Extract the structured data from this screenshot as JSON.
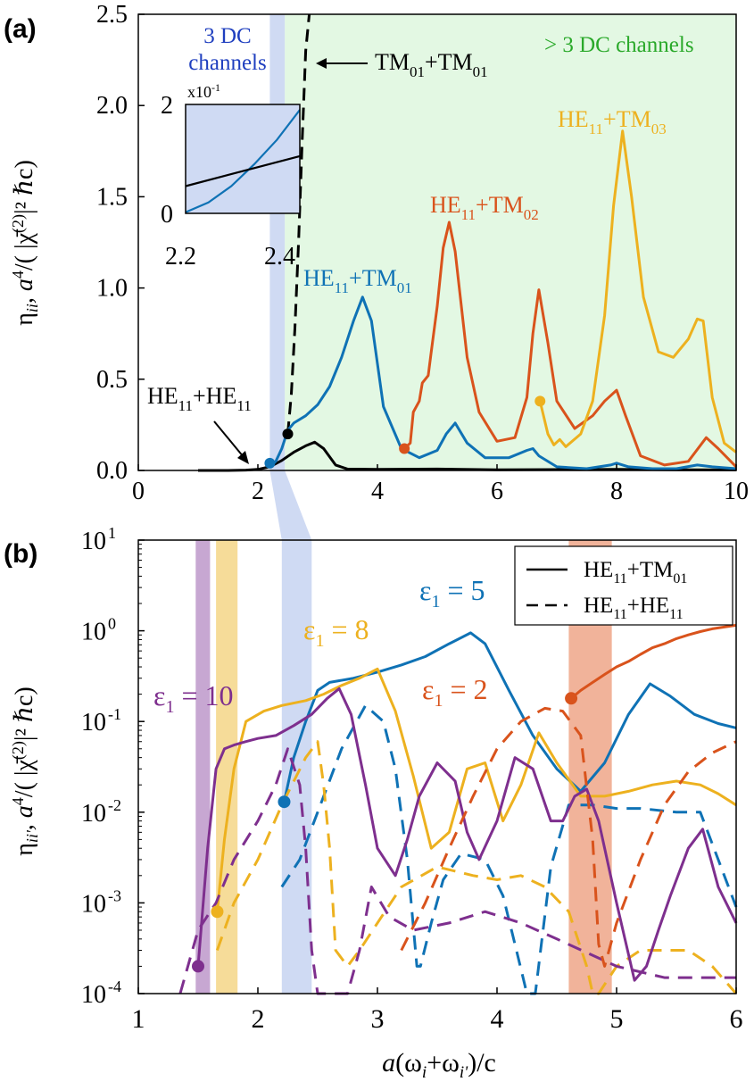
{
  "colors": {
    "blue": "#0f72b5",
    "orange": "#d9531c",
    "yellow": "#edb11f",
    "purple": "#7e2f8e",
    "black": "#000000",
    "green_region": "#e3f8e3",
    "blue_region": "#cfdaf3",
    "green_text": "#2aa92a",
    "blue_text": "#1f3fbf",
    "purple_band": "#c7a7d2",
    "yellow_band": "#f6dc99",
    "orange_band": "#f1b39a"
  },
  "chart_data": [
    {
      "panel": "(a)",
      "type": "line",
      "xlim": [
        0,
        10
      ],
      "ylim": [
        0,
        2.5
      ],
      "xticks": [
        "0",
        "2",
        "4",
        "6",
        "8",
        "10"
      ],
      "yticks": [
        "0.0",
        "0.5",
        "1.0",
        "1.5",
        "2.0",
        "2.5"
      ],
      "ylabel": {
        "prefix": "η",
        "sub1": "ii",
        "mid": ", a",
        "sup1": "4",
        "rest": "/( |χ̄",
        "sup2": "(2)",
        "end": "|² ℏc)"
      },
      "regions": [
        {
          "name": "3 DC channels",
          "x": [
            2.2,
            2.45
          ],
          "label_lines": [
            "3 DC",
            "channels"
          ]
        },
        {
          "name": "> 3 DC channels",
          "x": [
            2.45,
            10
          ],
          "label": "> 3 DC channels"
        }
      ],
      "series": [
        {
          "name": "HE11+HE11",
          "label": {
            "a": "HE",
            "b": "11",
            "c": "+HE",
            "d": "11"
          },
          "color": "black",
          "style": "solid",
          "x": [
            1.0,
            1.5,
            1.8,
            2.0,
            2.2,
            2.4,
            2.6,
            2.8,
            2.95,
            3.1,
            3.3,
            3.5,
            4.0,
            5.0,
            6.0,
            7.0,
            8.0,
            9.0,
            10.0
          ],
          "y": [
            0.0,
            0.0,
            0.002,
            0.006,
            0.02,
            0.055,
            0.1,
            0.135,
            0.155,
            0.12,
            0.03,
            0.008,
            0.006,
            0.008,
            0.004,
            0.005,
            0.006,
            0.004,
            0.003
          ]
        },
        {
          "name": "TM01+TM01",
          "label": {
            "a": "TM",
            "b": "01",
            "c": "+TM",
            "d": "01"
          },
          "color": "black",
          "style": "dashed",
          "x": [
            2.5,
            2.56,
            2.62,
            2.68,
            2.74,
            2.8,
            2.86
          ],
          "y": [
            0.2,
            0.42,
            0.78,
            1.25,
            1.8,
            2.3,
            2.5
          ]
        },
        {
          "name": "HE11+TM01",
          "label": {
            "a": "HE",
            "b": "11",
            "c": "+TM",
            "d": "01"
          },
          "color": "blue",
          "style": "solid",
          "x": [
            2.2,
            2.3,
            2.4,
            2.5,
            2.6,
            2.8,
            3.0,
            3.2,
            3.4,
            3.6,
            3.75,
            3.9,
            4.1,
            4.4,
            4.7,
            5.0,
            5.15,
            5.3,
            5.5,
            5.8,
            6.2,
            6.5,
            6.6,
            6.7,
            7.0,
            7.5,
            7.9,
            8.0,
            8.2,
            8.6,
            9.0,
            9.35,
            9.6,
            10.0
          ],
          "y": [
            0.02,
            0.05,
            0.12,
            0.22,
            0.26,
            0.3,
            0.36,
            0.46,
            0.62,
            0.82,
            0.95,
            0.82,
            0.35,
            0.12,
            0.07,
            0.11,
            0.2,
            0.26,
            0.15,
            0.07,
            0.07,
            0.11,
            0.12,
            0.08,
            0.02,
            0.01,
            0.03,
            0.04,
            0.02,
            0.01,
            0.01,
            0.03,
            0.02,
            0.01
          ]
        },
        {
          "name": "HE11+TM02",
          "label": {
            "a": "HE",
            "b": "11",
            "c": "+TM",
            "d": "02"
          },
          "color": "orange",
          "style": "solid",
          "x": [
            4.45,
            4.55,
            4.6,
            4.7,
            4.75,
            4.85,
            4.9,
            5.0,
            5.1,
            5.2,
            5.3,
            5.5,
            5.7,
            6.0,
            6.3,
            6.5,
            6.6,
            6.7,
            6.85,
            7.0,
            7.3,
            7.6,
            7.8,
            8.0,
            8.15,
            8.4,
            8.8,
            9.2,
            9.5,
            9.7,
            10.0
          ],
          "y": [
            0.12,
            0.15,
            0.32,
            0.38,
            0.48,
            0.52,
            0.65,
            0.9,
            1.22,
            1.36,
            1.2,
            0.62,
            0.32,
            0.16,
            0.18,
            0.4,
            0.75,
            0.99,
            0.7,
            0.38,
            0.23,
            0.3,
            0.38,
            0.44,
            0.3,
            0.08,
            0.03,
            0.05,
            0.18,
            0.12,
            0.02
          ]
        },
        {
          "name": "HE11+TM03",
          "label": {
            "a": "HE",
            "b": "11",
            "c": "+TM",
            "d": "03"
          },
          "color": "yellow",
          "style": "solid",
          "x": [
            6.72,
            6.85,
            6.95,
            7.05,
            7.15,
            7.4,
            7.6,
            7.8,
            7.95,
            8.1,
            8.25,
            8.45,
            8.7,
            8.95,
            9.2,
            9.35,
            9.45,
            9.6,
            9.8,
            10.0
          ],
          "y": [
            0.38,
            0.2,
            0.14,
            0.17,
            0.13,
            0.2,
            0.38,
            0.85,
            1.45,
            1.86,
            1.5,
            0.95,
            0.65,
            0.62,
            0.72,
            0.83,
            0.82,
            0.4,
            0.15,
            0.1
          ]
        }
      ],
      "markers": [
        {
          "x": 2.2,
          "y": 0.04,
          "color": "blue"
        },
        {
          "x": 2.5,
          "y": 0.2,
          "color": "black"
        },
        {
          "x": 4.45,
          "y": 0.12,
          "color": "orange"
        },
        {
          "x": 6.72,
          "y": 0.38,
          "color": "yellow"
        }
      ],
      "inset": {
        "xlim": [
          2.2,
          2.45
        ],
        "ylim": [
          0,
          2
        ],
        "exponent": "x10",
        "exponent_sup": "-1",
        "xticks": [
          "2.2",
          "2.4"
        ],
        "yticks": [
          "0",
          "2"
        ],
        "series": [
          {
            "color": "blue",
            "x": [
              2.2,
              2.25,
              2.3,
              2.35,
              2.4,
              2.45
            ],
            "y": [
              0.02,
              0.2,
              0.5,
              0.9,
              1.35,
              1.9
            ]
          },
          {
            "color": "black",
            "x": [
              2.2,
              2.45
            ],
            "y": [
              0.5,
              1.05
            ]
          }
        ]
      }
    },
    {
      "panel": "(b)",
      "type": "line",
      "yscale": "log",
      "xlim": [
        1,
        6
      ],
      "ylim": [
        0.0001,
        10
      ],
      "xticks": [
        "1",
        "2",
        "3",
        "4",
        "5",
        "6"
      ],
      "yticks": [
        {
          "base": "10",
          "exp": "1"
        },
        {
          "base": "10",
          "exp": "0"
        },
        {
          "base": "10",
          "exp": "-1"
        },
        {
          "base": "10",
          "exp": "-2"
        },
        {
          "base": "10",
          "exp": "-3"
        },
        {
          "base": "10",
          "exp": "-4"
        }
      ],
      "xlabel": {
        "a": "a",
        "b": "(ω",
        "c": "i",
        "d": "+ω",
        "e": "i'",
        "f": ")/c"
      },
      "ylabel": {
        "prefix": "η",
        "sub1": "ii'",
        "mid": ", a",
        "sup1": "4",
        "rest": "/( |χ̄",
        "sup2": "(2)",
        "end": "|² ℏc)"
      },
      "bands": [
        {
          "color": "purple_band",
          "x": [
            1.48,
            1.6
          ]
        },
        {
          "color": "yellow_band",
          "x": [
            1.65,
            1.83
          ]
        },
        {
          "color": "blue_region",
          "x": [
            2.2,
            2.45
          ]
        },
        {
          "color": "orange_band",
          "x": [
            4.6,
            4.96
          ]
        }
      ],
      "legend": [
        {
          "style": "solid",
          "label": {
            "a": "HE",
            "b": "11",
            "c": "+TM",
            "d": "01"
          }
        },
        {
          "style": "dashed",
          "label": {
            "a": "HE",
            "b": "11",
            "c": "+HE",
            "d": "11"
          }
        }
      ],
      "annotations": [
        {
          "text": "ε",
          "sub": "1",
          "rest": " = 5",
          "color": "blue"
        },
        {
          "text": "ε",
          "sub": "1",
          "rest": " = 8",
          "color": "yellow"
        },
        {
          "text": "ε",
          "sub": "1",
          "rest": " = 10",
          "color": "purple"
        },
        {
          "text": "ε",
          "sub": "1",
          "rest": " = 2",
          "color": "orange"
        }
      ],
      "series": [
        {
          "name": "eps5 HE11+TM01",
          "color": "blue",
          "style": "solid",
          "x": [
            2.22,
            2.3,
            2.4,
            2.5,
            2.6,
            2.8,
            3.0,
            3.2,
            3.4,
            3.6,
            3.78,
            3.9,
            4.1,
            4.3,
            4.5,
            4.7,
            4.9,
            5.1,
            5.28,
            5.45,
            5.65,
            5.85,
            6.0
          ],
          "y": [
            0.013,
            0.04,
            0.1,
            0.22,
            0.27,
            0.3,
            0.35,
            0.42,
            0.52,
            0.72,
            0.95,
            0.72,
            0.22,
            0.07,
            0.03,
            0.017,
            0.035,
            0.12,
            0.26,
            0.19,
            0.12,
            0.095,
            0.085
          ]
        },
        {
          "name": "eps5 HE11+HE11",
          "color": "blue",
          "style": "dashed",
          "x": [
            2.2,
            2.35,
            2.5,
            2.7,
            2.9,
            3.05,
            3.15,
            3.25,
            3.33,
            3.36,
            3.45,
            3.55,
            3.7,
            3.9,
            4.05,
            4.15,
            4.25,
            4.32,
            4.45,
            4.6,
            4.8,
            5.0,
            5.2,
            5.5,
            5.7,
            5.85,
            6.0
          ],
          "y": [
            0.0015,
            0.003,
            0.01,
            0.05,
            0.15,
            0.1,
            0.03,
            0.003,
            0.0002,
            0.0002,
            0.0006,
            0.0018,
            0.0035,
            0.003,
            0.0012,
            0.00035,
            0.0001,
            0.0001,
            0.0025,
            0.012,
            0.012,
            0.011,
            0.011,
            0.01,
            0.01,
            0.003,
            0.0009
          ]
        },
        {
          "name": "eps8 HE11+TM01",
          "color": "yellow",
          "style": "solid",
          "x": [
            1.66,
            1.72,
            1.8,
            1.9,
            2.05,
            2.2,
            2.4,
            2.55,
            2.7,
            2.85,
            3.0,
            3.15,
            3.3,
            3.45,
            3.6,
            3.75,
            3.9,
            4.05,
            4.2,
            4.35,
            4.5,
            4.7,
            4.9,
            5.1,
            5.3,
            5.5,
            5.7,
            5.85,
            6.0
          ],
          "y": [
            0.0008,
            0.005,
            0.03,
            0.1,
            0.13,
            0.15,
            0.17,
            0.2,
            0.25,
            0.3,
            0.38,
            0.13,
            0.025,
            0.004,
            0.006,
            0.03,
            0.035,
            0.008,
            0.02,
            0.075,
            0.035,
            0.015,
            0.015,
            0.017,
            0.02,
            0.022,
            0.02,
            0.016,
            0.012
          ]
        },
        {
          "name": "eps8 HE11+HE11",
          "color": "yellow",
          "style": "dashed",
          "x": [
            1.66,
            1.8,
            2.0,
            2.2,
            2.4,
            2.5,
            2.55,
            2.6,
            2.65,
            2.75,
            2.85,
            3.0,
            3.2,
            3.5,
            3.8,
            4.0,
            4.2,
            4.4,
            4.6,
            4.75,
            4.8,
            4.85,
            5.0,
            5.2,
            5.4,
            5.6,
            5.8,
            6.0
          ],
          "y": [
            0.0003,
            0.001,
            0.003,
            0.012,
            0.04,
            0.06,
            0.02,
            0.004,
            0.0003,
            0.0002,
            0.0003,
            0.0006,
            0.0015,
            0.0025,
            0.002,
            0.0018,
            0.002,
            0.0015,
            0.0008,
            0.0002,
            0.0001,
            0.0001,
            0.0002,
            0.0003,
            0.0003,
            0.0003,
            0.0002,
            0.0001
          ]
        },
        {
          "name": "eps10 HE11+TM01",
          "color": "purple",
          "style": "solid",
          "x": [
            1.5,
            1.58,
            1.65,
            1.72,
            1.8,
            1.9,
            2.0,
            2.15,
            2.3,
            2.45,
            2.58,
            2.68,
            2.78,
            2.9,
            3.0,
            3.15,
            3.25,
            3.35,
            3.5,
            3.65,
            3.75,
            3.85,
            4.0,
            4.15,
            4.3,
            4.45,
            4.55,
            4.65,
            4.75,
            4.85,
            5.0,
            5.15,
            5.25,
            5.35,
            5.45,
            5.6,
            5.72,
            5.85,
            6.0
          ],
          "y": [
            0.0002,
            0.004,
            0.03,
            0.05,
            0.055,
            0.06,
            0.065,
            0.07,
            0.09,
            0.12,
            0.18,
            0.23,
            0.12,
            0.02,
            0.004,
            0.002,
            0.005,
            0.015,
            0.035,
            0.022,
            0.006,
            0.003,
            0.008,
            0.04,
            0.03,
            0.008,
            0.008,
            0.015,
            0.018,
            0.008,
            0.001,
            0.00014,
            0.0002,
            0.0005,
            0.0012,
            0.004,
            0.0065,
            0.0015,
            0.0006
          ]
        },
        {
          "name": "eps10 HE11+HE11",
          "color": "purple",
          "style": "dashed",
          "x": [
            1.35,
            1.5,
            1.65,
            1.8,
            2.0,
            2.15,
            2.25,
            2.35,
            2.4,
            2.45,
            2.5,
            2.75,
            2.85,
            2.95,
            3.1,
            3.3,
            3.6,
            3.9,
            4.2,
            4.5,
            5.0,
            5.4,
            5.8,
            6.0
          ],
          "y": [
            0.0001,
            0.0005,
            0.001,
            0.003,
            0.008,
            0.02,
            0.05,
            0.02,
            0.004,
            0.0003,
            0.0001,
            0.0001,
            0.0003,
            0.0015,
            0.0007,
            0.0005,
            0.0006,
            0.0008,
            0.0006,
            0.0004,
            0.0002,
            0.00015,
            0.00015,
            0.00015
          ]
        },
        {
          "name": "eps2 HE11+TM01",
          "color": "orange",
          "style": "solid",
          "x": [
            4.62,
            4.7,
            4.8,
            4.9,
            5.0,
            5.1,
            5.2,
            5.3,
            5.4,
            5.5,
            5.6,
            5.7,
            5.8,
            5.9,
            6.0
          ],
          "y": [
            0.18,
            0.22,
            0.27,
            0.33,
            0.4,
            0.46,
            0.55,
            0.65,
            0.72,
            0.82,
            0.9,
            0.98,
            1.05,
            1.1,
            1.15
          ]
        },
        {
          "name": "eps2 HE11+HE11",
          "color": "orange",
          "style": "dashed",
          "x": [
            3.2,
            3.4,
            3.6,
            3.8,
            4.0,
            4.2,
            4.4,
            4.55,
            4.7,
            4.8,
            4.85,
            4.9,
            5.0,
            5.2,
            5.4,
            5.6,
            5.8,
            6.0
          ],
          "y": [
            0.0003,
            0.001,
            0.004,
            0.015,
            0.05,
            0.1,
            0.14,
            0.13,
            0.07,
            0.005,
            0.00035,
            0.0002,
            0.0006,
            0.003,
            0.012,
            0.028,
            0.045,
            0.06
          ]
        }
      ],
      "markers": [
        {
          "x": 1.5,
          "y": 0.0002,
          "color": "purple"
        },
        {
          "x": 1.66,
          "y": 0.0008,
          "color": "yellow"
        },
        {
          "x": 2.22,
          "y": 0.013,
          "color": "blue"
        },
        {
          "x": 4.62,
          "y": 0.18,
          "color": "orange"
        }
      ]
    }
  ]
}
